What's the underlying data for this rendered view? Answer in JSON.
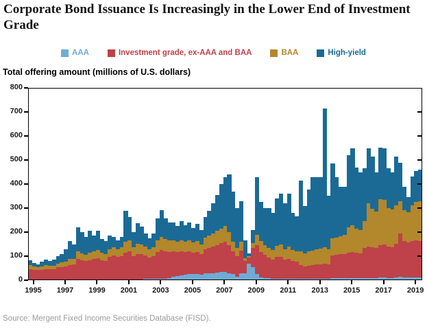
{
  "title": "Corporate Bond Issuance Is Increasingly in the Lower End of Investment Grade",
  "subtitle": "Total offering amount (millions of U.S. dollars)",
  "source": "Source: Mergent Fixed Income Securities Database (FISD).",
  "axes": {
    "y_ticks": [
      0,
      100,
      200,
      300,
      400,
      500,
      600,
      700,
      800
    ],
    "x_tick_years": [
      "1995",
      "1997",
      "1999",
      "2001",
      "2003",
      "2005",
      "2007",
      "2009",
      "2011",
      "2013",
      "2015",
      "2017",
      "2019"
    ]
  },
  "chart_data": {
    "type": "bar",
    "stacked": true,
    "grid": false,
    "legend_position": "top-center",
    "title": "Corporate Bond Issuance Is Increasingly in the Lower End of Investment Grade",
    "ylabel": "Total offering amount (millions of U.S. dollars)",
    "xlabel": "",
    "ylim": [
      0,
      800
    ],
    "y_tick_step": 100,
    "categories": [
      "1995Q1",
      "1995Q2",
      "1995Q3",
      "1995Q4",
      "1996Q1",
      "1996Q2",
      "1996Q3",
      "1996Q4",
      "1997Q1",
      "1997Q2",
      "1997Q3",
      "1997Q4",
      "1998Q1",
      "1998Q2",
      "1998Q3",
      "1998Q4",
      "1999Q1",
      "1999Q2",
      "1999Q3",
      "1999Q4",
      "2000Q1",
      "2000Q2",
      "2000Q3",
      "2000Q4",
      "2001Q1",
      "2001Q2",
      "2001Q3",
      "2001Q4",
      "2002Q1",
      "2002Q2",
      "2002Q3",
      "2002Q4",
      "2003Q1",
      "2003Q2",
      "2003Q3",
      "2003Q4",
      "2004Q1",
      "2004Q2",
      "2004Q3",
      "2004Q4",
      "2005Q1",
      "2005Q2",
      "2005Q3",
      "2005Q4",
      "2006Q1",
      "2006Q2",
      "2006Q3",
      "2006Q4",
      "2007Q1",
      "2007Q2",
      "2007Q3",
      "2007Q4",
      "2008Q1",
      "2008Q2",
      "2008Q3",
      "2008Q4",
      "2009Q1",
      "2009Q2",
      "2009Q3",
      "2009Q4",
      "2010Q1",
      "2010Q2",
      "2010Q3",
      "2010Q4",
      "2011Q1",
      "2011Q2",
      "2011Q3",
      "2011Q4",
      "2012Q1",
      "2012Q2",
      "2012Q3",
      "2012Q4",
      "2013Q1",
      "2013Q2",
      "2013Q3",
      "2013Q4",
      "2014Q1",
      "2014Q2",
      "2014Q3",
      "2014Q4",
      "2015Q1",
      "2015Q2",
      "2015Q3",
      "2015Q4",
      "2016Q1",
      "2016Q2",
      "2016Q3",
      "2016Q4",
      "2017Q1",
      "2017Q2",
      "2017Q3",
      "2017Q4",
      "2018Q1",
      "2018Q2",
      "2018Q3",
      "2018Q4",
      "2019Q1",
      "2019Q2",
      "2019Q3"
    ],
    "series": [
      {
        "name": "AAA",
        "color": "#6FACD5",
        "values": [
          2,
          2,
          2,
          2,
          2,
          2,
          2,
          3,
          3,
          3,
          3,
          3,
          4,
          4,
          4,
          4,
          4,
          4,
          3,
          3,
          3,
          3,
          3,
          3,
          4,
          4,
          4,
          4,
          4,
          5,
          5,
          5,
          6,
          6,
          6,
          8,
          15,
          18,
          20,
          22,
          25,
          25,
          25,
          22,
          28,
          30,
          30,
          32,
          35,
          35,
          30,
          25,
          15,
          28,
          30,
          70,
          55,
          25,
          12,
          10,
          8,
          6,
          6,
          6,
          5,
          5,
          5,
          5,
          5,
          5,
          5,
          5,
          5,
          5,
          6,
          5,
          8,
          8,
          8,
          10,
          10,
          10,
          10,
          10,
          8,
          10,
          10,
          10,
          12,
          12,
          10,
          10,
          12,
          15,
          12,
          12,
          12,
          12,
          12
        ]
      },
      {
        "name": "Investment grade, ex-AAA and BAA",
        "color": "#BF4149",
        "values": [
          45,
          42,
          40,
          42,
          45,
          44,
          44,
          50,
          52,
          55,
          60,
          62,
          85,
          80,
          75,
          80,
          85,
          88,
          80,
          78,
          95,
          100,
          95,
          98,
          110,
          115,
          95,
          105,
          105,
          98,
          90,
          95,
          110,
          120,
          115,
          110,
          105,
          100,
          100,
          95,
          95,
          90,
          92,
          88,
          100,
          105,
          110,
          115,
          120,
          125,
          115,
          95,
          85,
          95,
          50,
          25,
          80,
          120,
          105,
          95,
          85,
          80,
          90,
          92,
          80,
          85,
          75,
          72,
          58,
          52,
          56,
          58,
          62,
          62,
          64,
          60,
          95,
          98,
          100,
          100,
          105,
          108,
          105,
          102,
          125,
          130,
          128,
          125,
          135,
          138,
          130,
          128,
          140,
          180,
          150,
          145,
          150,
          155,
          152
        ]
      },
      {
        "name": "BAA",
        "color": "#B3872B",
        "values": [
          15,
          14,
          13,
          14,
          15,
          14,
          15,
          17,
          18,
          20,
          25,
          25,
          30,
          28,
          26,
          30,
          32,
          35,
          30,
          28,
          32,
          35,
          32,
          36,
          45,
          48,
          38,
          42,
          40,
          36,
          33,
          36,
          50,
          55,
          50,
          48,
          45,
          42,
          45,
          42,
          45,
          42,
          45,
          40,
          48,
          50,
          55,
          58,
          60,
          65,
          55,
          40,
          35,
          38,
          12,
          6,
          18,
          45,
          45,
          40,
          42,
          40,
          48,
          50,
          45,
          50,
          45,
          42,
          58,
          55,
          58,
          60,
          62,
          65,
          68,
          63,
          70,
          72,
          75,
          78,
          105,
          112,
          100,
          98,
          114,
          180,
          160,
          150,
          190,
          185,
          160,
          155,
          160,
          135,
          130,
          125,
          150,
          160,
          165
        ]
      },
      {
        "name": "High-yield",
        "color": "#1B6A96",
        "values": [
          20,
          13,
          12,
          18,
          24,
          21,
          25,
          30,
          37,
          51,
          74,
          58,
          100,
          88,
          75,
          91,
          65,
          78,
          58,
          53,
          56,
          42,
          35,
          43,
          130,
          95,
          63,
          85,
          75,
          55,
          46,
          58,
          90,
          110,
          85,
          75,
          75,
          65,
          80,
          70,
          75,
          60,
          73,
          58,
          88,
          105,
          125,
          150,
          185,
          205,
          240,
          210,
          165,
          169,
          75,
          10,
          55,
          240,
          165,
          155,
          165,
          154,
          196,
          212,
          190,
          220,
          155,
          146,
          293,
          197,
          257,
          305,
          299,
          298,
          577,
          224,
          313,
          250,
          207,
          202,
          300,
          320,
          255,
          240,
          220,
          228,
          216,
          163,
          215,
          213,
          167,
          155,
          202,
          160,
          98,
          63,
          120,
          128,
          131
        ]
      }
    ]
  }
}
